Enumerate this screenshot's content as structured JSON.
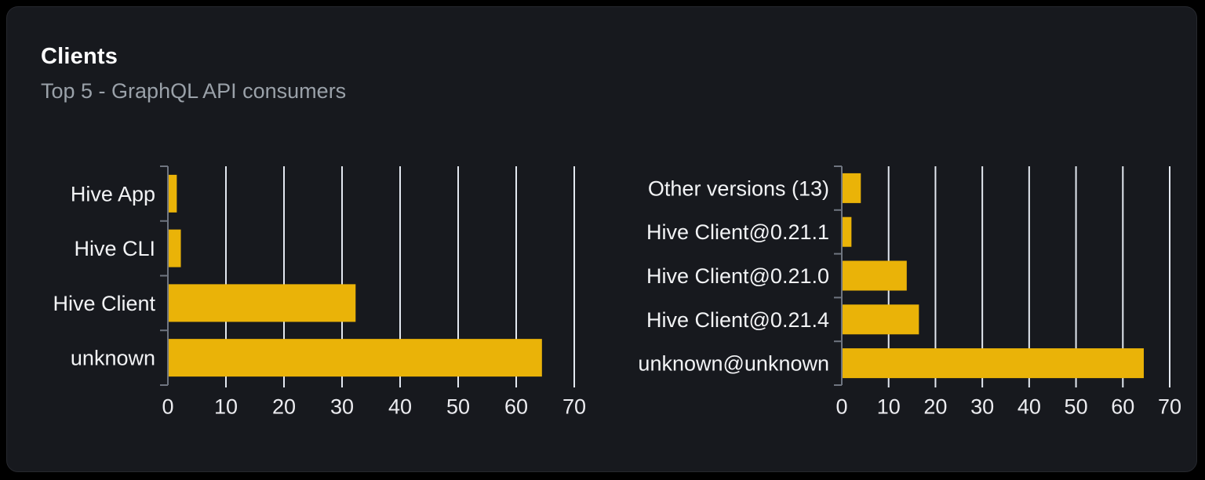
{
  "card": {
    "title": "Clients",
    "subtitle": "Top 5 - GraphQL API consumers"
  },
  "colors": {
    "page_bg": "#000000",
    "card_bg": "#17191e",
    "bar": "#eab308",
    "grid": "#e3e8f0",
    "axis": "#6f7580",
    "tick_label": "#ececf0",
    "category_label": "#f2f3f5",
    "title": "#fdfdfe",
    "subtitle": "#9aa1a9"
  },
  "chart_data": [
    {
      "type": "bar",
      "orientation": "horizontal",
      "name": "top-5-graphql-clients",
      "categories": [
        "Hive App",
        "Hive CLI",
        "Hive Client",
        "unknown"
      ],
      "values": [
        1.4,
        2.1,
        32.2,
        64.3
      ],
      "xlim": [
        0,
        70
      ],
      "xticks": [
        0,
        10,
        20,
        30,
        40,
        50,
        60,
        70
      ],
      "grid": true,
      "legend": false
    },
    {
      "type": "bar",
      "orientation": "horizontal",
      "name": "top-5-graphql-client-versions",
      "categories": [
        "Other versions (13)",
        "Hive Client@0.21.1",
        "Hive Client@0.21.0",
        "Hive Client@0.21.4",
        "unknown@unknown"
      ],
      "values": [
        3.9,
        1.9,
        13.7,
        16.3,
        64.3
      ],
      "xlim": [
        0,
        70
      ],
      "xticks": [
        0,
        10,
        20,
        30,
        40,
        50,
        60,
        70
      ],
      "grid": true,
      "legend": false
    }
  ]
}
